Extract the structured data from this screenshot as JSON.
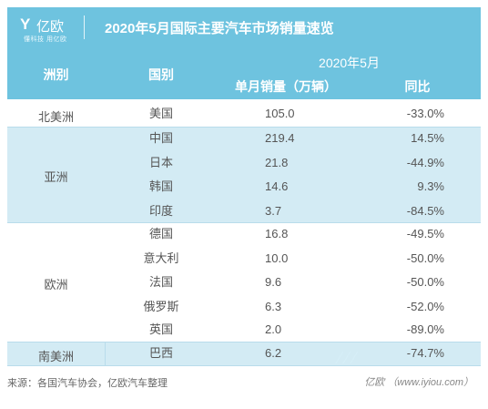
{
  "header": {
    "logo_mark": "Y",
    "logo_text": "亿欧",
    "logo_sub": "懂科技 用亿欧",
    "title": "2020年5月国际主要汽车市场销量速览"
  },
  "table": {
    "col_region": "洲别",
    "col_country": "国别",
    "col_group": "2020年5月",
    "col_sales": "单月销量（万辆）",
    "col_yoy": "同比",
    "regions": [
      {
        "name": "北美洲",
        "rows": [
          {
            "country": "美国",
            "sales": "105.0",
            "yoy": "-33.0%"
          }
        ]
      },
      {
        "name": "亚洲",
        "rows": [
          {
            "country": "中国",
            "sales": "219.4",
            "yoy": "14.5%"
          },
          {
            "country": "日本",
            "sales": "21.8",
            "yoy": "-44.9%"
          },
          {
            "country": "韩国",
            "sales": "14.6",
            "yoy": "9.3%"
          },
          {
            "country": "印度",
            "sales": "3.7",
            "yoy": "-84.5%"
          }
        ]
      },
      {
        "name": "欧洲",
        "rows": [
          {
            "country": "德国",
            "sales": "16.8",
            "yoy": "-49.5%"
          },
          {
            "country": "意大利",
            "sales": "10.0",
            "yoy": "-50.0%"
          },
          {
            "country": "法国",
            "sales": "9.6",
            "yoy": "-50.0%"
          },
          {
            "country": "俄罗斯",
            "sales": "6.3",
            "yoy": "-52.0%"
          },
          {
            "country": "英国",
            "sales": "2.0",
            "yoy": "-89.0%"
          }
        ]
      },
      {
        "name": "南美洲",
        "rows": [
          {
            "country": "巴西",
            "sales": "6.2",
            "yoy": "-74.7%"
          }
        ]
      }
    ]
  },
  "footer": {
    "source": "来源：各国汽车协会，亿欧汽车整理",
    "site": "亿欧 （www.iyiou.com）"
  },
  "colors": {
    "header_bg": "#6ec3df",
    "band_blue": "#d3ebf4",
    "text": "#555555"
  }
}
